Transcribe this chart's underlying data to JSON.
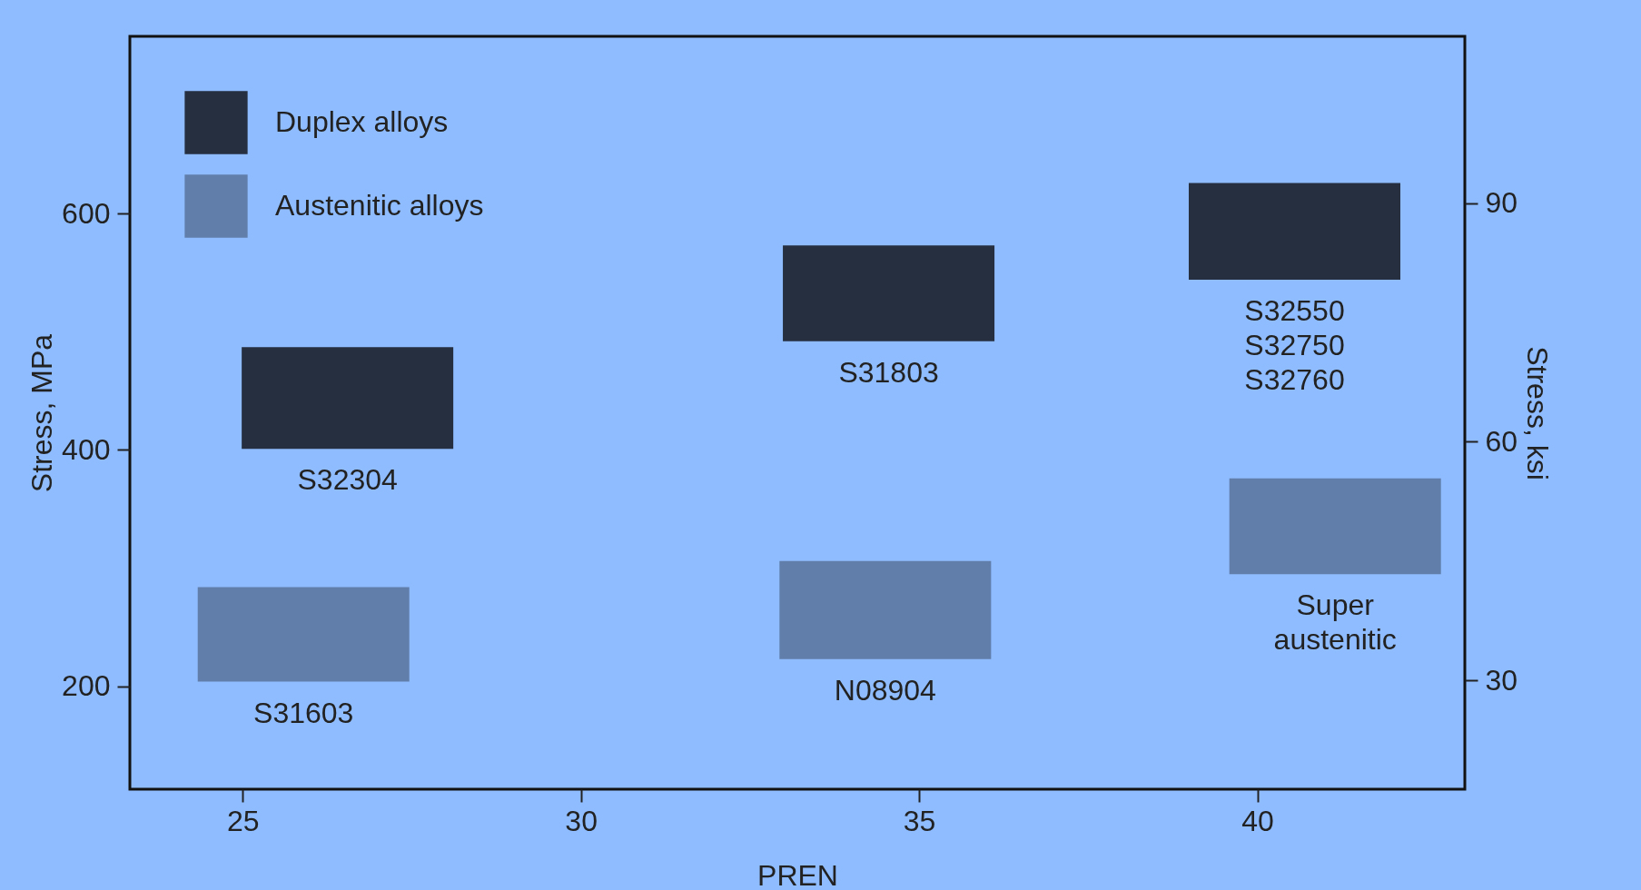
{
  "chart_data": {
    "type": "bar",
    "xlabel": "PREN",
    "ylabel": "Stress, MPa",
    "y2label": "Stress, ksi",
    "xlim": [
      23.4,
      43.0
    ],
    "xticks": [
      25,
      30,
      35,
      40
    ],
    "ylim": [
      113,
      750
    ],
    "yticks": [
      200,
      400,
      600
    ],
    "y2lim": [
      16.3,
      111
    ],
    "y2ticks": [
      30,
      60,
      90
    ],
    "legend": "top left",
    "series": [
      {
        "name": "Duplex alloys",
        "color": "#252f3f",
        "x": [
          26.55,
          34.55,
          40.55
        ],
        "base": [
          401,
          492,
          544
        ],
        "values": [
          86,
          81,
          82
        ]
      },
      {
        "name": "Austenitic alloys",
        "color": "#607ea9",
        "x": [
          25.9,
          34.5,
          41.15
        ],
        "base": [
          204,
          223,
          295
        ],
        "values": [
          80,
          83,
          81
        ]
      }
    ],
    "annotations": [
      "S32304",
      "S31803",
      "S32550\nS32750\nS32760",
      "S31603",
      "N08904",
      "Super\naustenitic"
    ]
  }
}
